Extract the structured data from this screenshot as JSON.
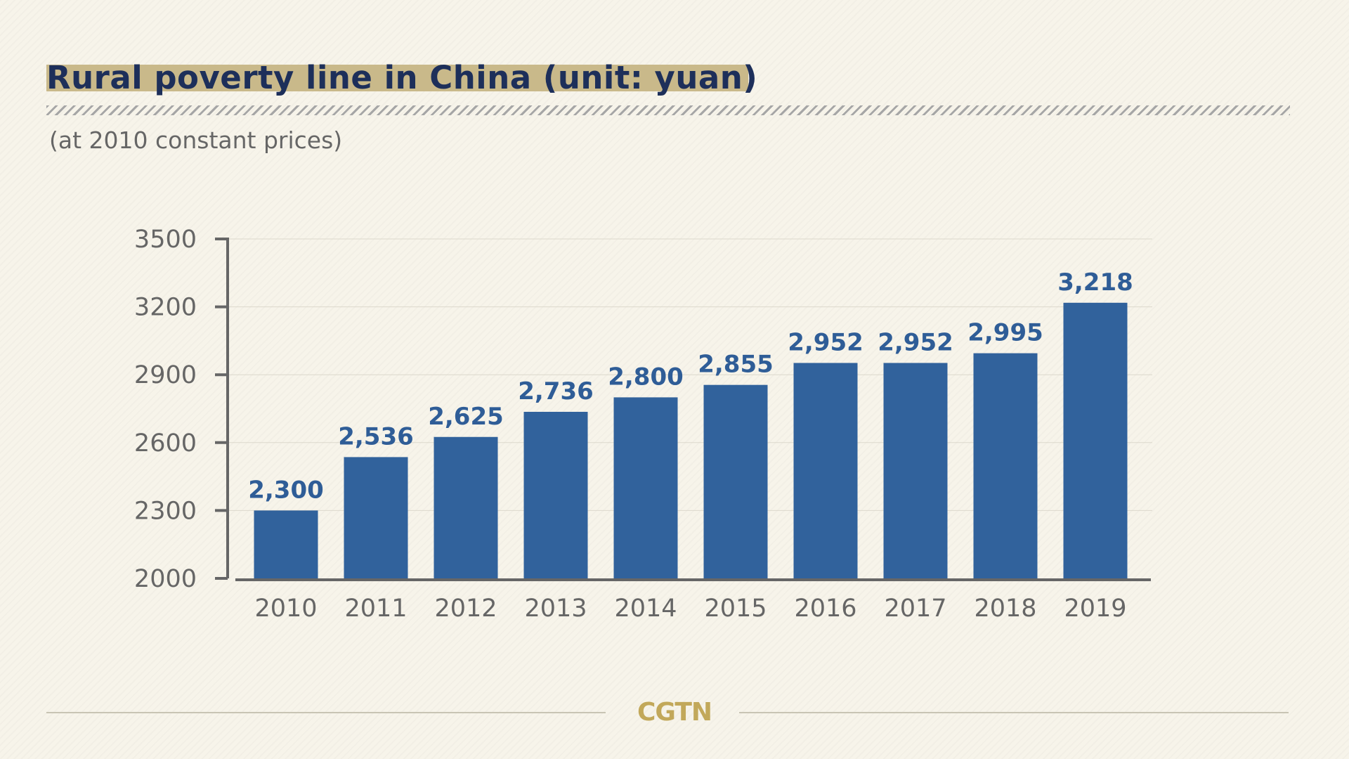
{
  "header": {
    "title": "Rural poverty line in China (unit: yuan)",
    "subtitle": "(at 2010 constant prices)"
  },
  "footer": {
    "brand": "CGTN"
  },
  "colors": {
    "bar": "#31629c",
    "data_label": "#2f5d97",
    "title": "#1d2f5a",
    "title_highlight": "#c9b98a",
    "tick_label": "#666666",
    "axis": "#666666",
    "gridline": "#dcd8cc",
    "brand": "#c2a85a",
    "background": "#f7f4ea"
  },
  "chart_data": {
    "type": "bar",
    "categories": [
      "2010",
      "2011",
      "2012",
      "2013",
      "2014",
      "2015",
      "2016",
      "2017",
      "2018",
      "2019"
    ],
    "values": [
      2300,
      2536,
      2625,
      2736,
      2800,
      2855,
      2952,
      2952,
      2995,
      3218
    ],
    "data_labels": [
      "2,300",
      "2,536",
      "2,625",
      "2,736",
      "2,800",
      "2,855",
      "2,952",
      "2,952",
      "2,995",
      "3,218"
    ],
    "y_ticks": [
      2000,
      2300,
      2600,
      2900,
      3200,
      3500
    ],
    "ylim": [
      2000,
      3500
    ],
    "grid": true,
    "legend": "none"
  }
}
